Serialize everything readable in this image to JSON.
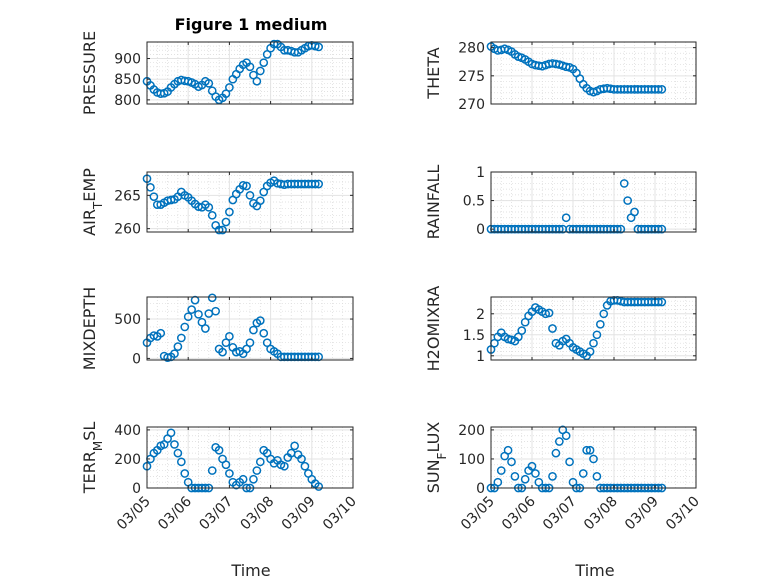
{
  "figure": {
    "title": "Figure 1 medium",
    "marker_color": "#0072BD",
    "grid": "on",
    "minor_grid": "on",
    "time_xlabel": "Time"
  },
  "chart_data": [
    {
      "type": "scatter",
      "ylabel": "PRESSURE",
      "ylim": [
        790,
        940
      ],
      "yticks": [
        800,
        850,
        900
      ],
      "xlim": [
        "03/05",
        "03/09 20:00"
      ],
      "xticks": [],
      "x_hours": [
        0,
        2,
        4,
        6,
        8,
        10,
        12,
        14,
        16,
        18,
        20,
        22,
        24,
        26,
        28,
        30,
        32,
        34,
        36,
        38,
        40,
        42,
        44,
        46,
        48,
        50,
        52,
        54,
        56,
        58,
        60,
        62,
        64,
        66,
        68,
        70,
        72,
        74,
        76,
        78,
        80,
        82,
        84,
        86,
        88,
        90,
        92,
        94,
        96,
        98,
        100
      ],
      "y": [
        845,
        835,
        825,
        818,
        815,
        816,
        820,
        830,
        838,
        845,
        848,
        846,
        845,
        842,
        838,
        832,
        836,
        845,
        840,
        822,
        808,
        800,
        805,
        815,
        830,
        850,
        862,
        875,
        885,
        890,
        880,
        860,
        845,
        870,
        890,
        910,
        925,
        935,
        935,
        928,
        920,
        920,
        918,
        915,
        915,
        920,
        925,
        930,
        932,
        930,
        928
      ]
    },
    {
      "type": "scatter",
      "ylabel": "THETA",
      "ylim": [
        270,
        281
      ],
      "yticks": [
        270,
        275,
        280
      ],
      "xlim": [
        "03/05",
        "03/09 20:00"
      ],
      "xticks": [],
      "x_hours": [
        0,
        2,
        4,
        6,
        8,
        10,
        12,
        14,
        16,
        18,
        20,
        22,
        24,
        26,
        28,
        30,
        32,
        34,
        36,
        38,
        40,
        42,
        44,
        46,
        48,
        50,
        52,
        54,
        56,
        58,
        60,
        62,
        64,
        66,
        68,
        70,
        72,
        74,
        76,
        78,
        80,
        82,
        84,
        86,
        88,
        90,
        92,
        94,
        96,
        98,
        100
      ],
      "y": [
        280.2,
        279.8,
        279.5,
        279.6,
        279.8,
        279.6,
        279.3,
        278.8,
        278.4,
        278.2,
        277.9,
        277.5,
        277.1,
        276.9,
        276.8,
        276.7,
        276.9,
        277.1,
        277.2,
        277.1,
        277.0,
        276.8,
        276.6,
        276.5,
        276.2,
        275.5,
        274.5,
        273.5,
        272.8,
        272.3,
        272.1,
        272.3,
        272.6,
        272.7,
        272.8,
        272.7,
        272.6,
        272.6,
        272.6,
        272.6,
        272.6,
        272.6,
        272.6,
        272.6,
        272.6,
        272.6,
        272.6,
        272.6,
        272.6,
        272.6,
        272.6
      ]
    },
    {
      "type": "scatter",
      "ylabel": "AIR_TEMP",
      "ylim": [
        259.5,
        268.5
      ],
      "yticks": [
        260,
        265
      ],
      "xlim": [
        "03/05",
        "03/09 20:00"
      ],
      "xticks": [],
      "x_hours": [
        0,
        2,
        4,
        6,
        8,
        10,
        12,
        14,
        16,
        18,
        20,
        22,
        24,
        26,
        28,
        30,
        32,
        34,
        36,
        38,
        40,
        42,
        44,
        46,
        48,
        50,
        52,
        54,
        56,
        58,
        60,
        62,
        64,
        66,
        68,
        70,
        72,
        74,
        76,
        78,
        80,
        82,
        84,
        86,
        88,
        90,
        92,
        94,
        96,
        98,
        100
      ],
      "y": [
        267.5,
        266.2,
        264.8,
        263.6,
        263.6,
        263.9,
        264.2,
        264.3,
        264.4,
        264.8,
        265.5,
        265.0,
        264.7,
        264.2,
        263.7,
        263.3,
        263.2,
        263.6,
        263.2,
        262.0,
        260.5,
        259.8,
        259.8,
        261.0,
        262.5,
        264.3,
        265.2,
        265.9,
        266.5,
        266.4,
        265.0,
        263.8,
        263.4,
        264.2,
        265.5,
        266.4,
        266.9,
        267.2,
        266.8,
        266.7,
        266.6,
        266.7,
        266.7,
        266.7,
        266.7,
        266.7,
        266.7,
        266.7,
        266.7,
        266.7,
        266.7
      ]
    },
    {
      "type": "scatter",
      "ylabel": "RAINFALL",
      "ylim": [
        -0.05,
        1.0
      ],
      "yticks": [
        0,
        0.5,
        1
      ],
      "xlim": [
        "03/05",
        "03/09 20:00"
      ],
      "xticks": [],
      "x_hours": [
        0,
        2,
        4,
        6,
        8,
        10,
        12,
        14,
        16,
        18,
        20,
        22,
        24,
        26,
        28,
        30,
        32,
        34,
        36,
        38,
        40,
        42,
        44,
        46,
        48,
        50,
        52,
        54,
        56,
        58,
        60,
        62,
        64,
        66,
        68,
        70,
        72,
        74,
        76,
        78,
        80,
        82,
        84,
        86,
        88,
        90,
        92,
        94,
        96,
        98,
        100
      ],
      "y": [
        0,
        0,
        0,
        0,
        0,
        0,
        0,
        0,
        0,
        0,
        0,
        0,
        0,
        0,
        0,
        0,
        0,
        0,
        0,
        0,
        0,
        0,
        0.2,
        0,
        0,
        0,
        0,
        0,
        0,
        0,
        0,
        0,
        0,
        0,
        0,
        0,
        0,
        0,
        0,
        0.8,
        0.5,
        0.2,
        0.3,
        0,
        0,
        0,
        0,
        0,
        0,
        0,
        0
      ]
    },
    {
      "type": "scatter",
      "ylabel": "MIXDEPTH",
      "ylim": [
        -20,
        780
      ],
      "yticks": [
        0,
        500
      ],
      "xlim": [
        "03/05",
        "03/09 20:00"
      ],
      "xticks": [],
      "x_hours": [
        0,
        2,
        4,
        6,
        8,
        10,
        12,
        14,
        16,
        18,
        20,
        22,
        24,
        26,
        28,
        30,
        32,
        34,
        36,
        38,
        40,
        42,
        44,
        46,
        48,
        50,
        52,
        54,
        56,
        58,
        60,
        62,
        64,
        66,
        68,
        70,
        72,
        74,
        76,
        78,
        80,
        82,
        84,
        86,
        88,
        90,
        92,
        94,
        96,
        98,
        100
      ],
      "y": [
        200,
        260,
        290,
        280,
        320,
        30,
        10,
        20,
        60,
        150,
        260,
        400,
        530,
        620,
        740,
        560,
        460,
        380,
        570,
        770,
        600,
        120,
        80,
        200,
        280,
        140,
        80,
        90,
        60,
        120,
        200,
        360,
        450,
        480,
        320,
        200,
        120,
        90,
        60,
        20,
        20,
        20,
        20,
        20,
        20,
        20,
        20,
        20,
        20,
        20,
        20
      ]
    },
    {
      "type": "scatter",
      "ylabel": "H2OMIXRA",
      "ylim": [
        0.9,
        2.4
      ],
      "yticks": [
        1,
        1.5,
        2
      ],
      "xlim": [
        "03/05",
        "03/09 20:00"
      ],
      "xticks": [],
      "x_hours": [
        0,
        2,
        4,
        6,
        8,
        10,
        12,
        14,
        16,
        18,
        20,
        22,
        24,
        26,
        28,
        30,
        32,
        34,
        36,
        38,
        40,
        42,
        44,
        46,
        48,
        50,
        52,
        54,
        56,
        58,
        60,
        62,
        64,
        66,
        68,
        70,
        72,
        74,
        76,
        78,
        80,
        82,
        84,
        86,
        88,
        90,
        92,
        94,
        96,
        98,
        100
      ],
      "y": [
        1.15,
        1.3,
        1.45,
        1.55,
        1.45,
        1.4,
        1.38,
        1.35,
        1.45,
        1.6,
        1.8,
        1.95,
        2.05,
        2.15,
        2.1,
        2.05,
        2.0,
        2.02,
        1.65,
        1.3,
        1.25,
        1.35,
        1.4,
        1.3,
        1.2,
        1.15,
        1.1,
        1.05,
        1.0,
        1.1,
        1.3,
        1.5,
        1.75,
        2.0,
        2.2,
        2.3,
        2.32,
        2.32,
        2.3,
        2.28,
        2.28,
        2.28,
        2.28,
        2.28,
        2.28,
        2.28,
        2.28,
        2.28,
        2.28,
        2.28,
        2.28
      ]
    },
    {
      "type": "scatter",
      "ylabel": "TERR_MSL",
      "ylim": [
        0,
        420
      ],
      "yticks": [
        0,
        200,
        400
      ],
      "xlim": [
        "03/05",
        "03/09 20:00"
      ],
      "xticks": [
        "03/05",
        "03/06",
        "03/07",
        "03/08",
        "03/09",
        "03/10"
      ],
      "x_hours": [
        0,
        2,
        4,
        6,
        8,
        10,
        12,
        14,
        16,
        18,
        20,
        22,
        24,
        26,
        28,
        30,
        32,
        34,
        36,
        38,
        40,
        42,
        44,
        46,
        48,
        50,
        52,
        54,
        56,
        58,
        60,
        62,
        64,
        66,
        68,
        70,
        72,
        74,
        76,
        78,
        80,
        82,
        84,
        86,
        88,
        90,
        92,
        94,
        96,
        98,
        100
      ],
      "y": [
        150,
        200,
        240,
        260,
        290,
        300,
        340,
        380,
        300,
        240,
        180,
        100,
        40,
        0,
        0,
        0,
        0,
        0,
        0,
        120,
        280,
        260,
        200,
        160,
        100,
        40,
        20,
        40,
        60,
        0,
        0,
        60,
        120,
        180,
        260,
        240,
        200,
        170,
        190,
        160,
        150,
        210,
        240,
        290,
        230,
        200,
        150,
        100,
        60,
        30,
        10
      ]
    },
    {
      "type": "scatter",
      "ylabel": "SUN_FLUX",
      "ylim": [
        0,
        210
      ],
      "yticks": [
        0,
        100,
        200
      ],
      "xlim": [
        "03/05",
        "03/09 20:00"
      ],
      "xticks": [
        "03/05",
        "03/06",
        "03/07",
        "03/08",
        "03/09",
        "03/10"
      ],
      "x_hours": [
        0,
        2,
        4,
        6,
        8,
        10,
        12,
        14,
        16,
        18,
        20,
        22,
        24,
        26,
        28,
        30,
        32,
        34,
        36,
        38,
        40,
        42,
        44,
        46,
        48,
        50,
        52,
        54,
        56,
        58,
        60,
        62,
        64,
        66,
        68,
        70,
        72,
        74,
        76,
        78,
        80,
        82,
        84,
        86,
        88,
        90,
        92,
        94,
        96,
        98,
        100
      ],
      "y": [
        0,
        0,
        20,
        60,
        110,
        130,
        90,
        40,
        0,
        0,
        30,
        60,
        75,
        50,
        20,
        0,
        0,
        0,
        40,
        120,
        160,
        200,
        180,
        90,
        20,
        0,
        0,
        50,
        130,
        130,
        100,
        40,
        0,
        0,
        0,
        0,
        0,
        0,
        0,
        0,
        0,
        0,
        0,
        0,
        0,
        0,
        0,
        0,
        0,
        0,
        0
      ]
    }
  ]
}
